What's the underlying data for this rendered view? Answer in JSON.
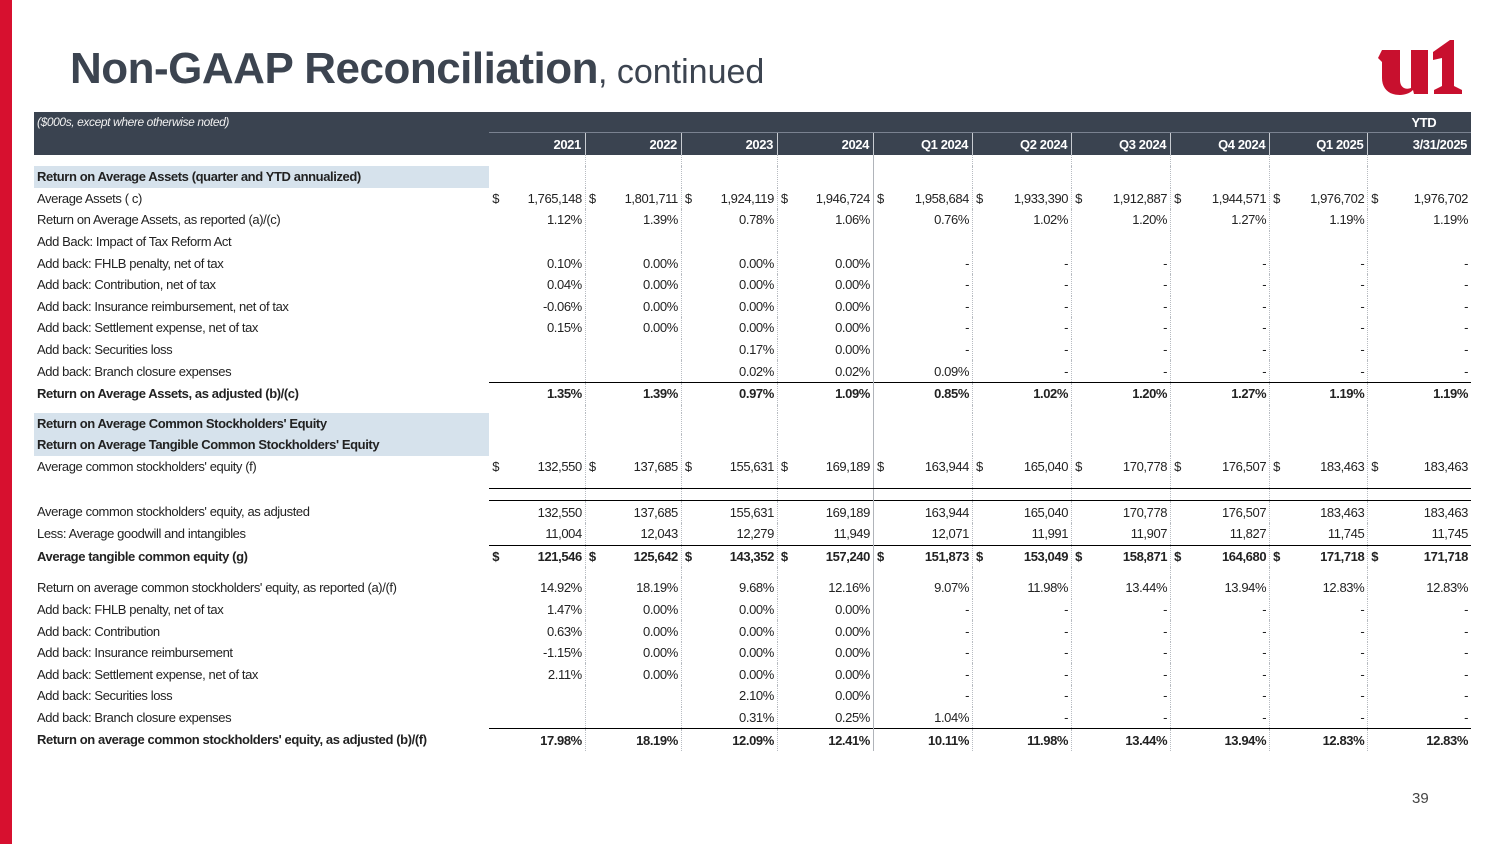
{
  "header": {
    "title_bold": "Non-GAAP Reconciliation",
    "title_rest": ", continued",
    "logo_text": "u1",
    "page_number": "39"
  },
  "table": {
    "note": "($000s, except where otherwise noted)",
    "ytd_label": "YTD",
    "columns": [
      "2021",
      "2022",
      "2023",
      "2024",
      "Q1 2024",
      "Q2 2024",
      "Q3 2024",
      "Q4 2024",
      "Q1 2025",
      "3/31/2025"
    ],
    "section1": {
      "heading": "Return on Average Assets (quarter and YTD annualized)",
      "rows": [
        {
          "label": "Average Assets ( c)",
          "cur": true,
          "values": [
            "1,765,148",
            "1,801,711",
            "1,924,119",
            "1,946,724",
            "1,958,684",
            "1,933,390",
            "1,912,887",
            "1,944,571",
            "1,976,702",
            "1,976,702"
          ]
        },
        {
          "label": "Return on Average Assets, as reported (a)/(c)",
          "values": [
            "1.12%",
            "1.39%",
            "0.78%",
            "1.06%",
            "0.76%",
            "1.02%",
            "1.20%",
            "1.27%",
            "1.19%",
            "1.19%"
          ]
        },
        {
          "label": "Add Back: Impact of Tax Reform Act",
          "values": [
            "",
            "",
            "",
            "",
            "",
            "",
            "",
            "",
            "",
            ""
          ]
        },
        {
          "label": "Add back: FHLB penalty, net of tax",
          "values": [
            "0.10%",
            "0.00%",
            "0.00%",
            "0.00%",
            "-",
            "-",
            "-",
            "-",
            "-",
            "-"
          ]
        },
        {
          "label": "Add back: Contribution, net of tax",
          "values": [
            "0.04%",
            "0.00%",
            "0.00%",
            "0.00%",
            "-",
            "-",
            "-",
            "-",
            "-",
            "-"
          ]
        },
        {
          "label": "Add back: Insurance reimbursement, net of tax",
          "values": [
            "-0.06%",
            "0.00%",
            "0.00%",
            "0.00%",
            "-",
            "-",
            "-",
            "-",
            "-",
            "-"
          ]
        },
        {
          "label": "Add back: Settlement expense, net of tax",
          "values": [
            "0.15%",
            "0.00%",
            "0.00%",
            "0.00%",
            "-",
            "-",
            "-",
            "-",
            "-",
            "-"
          ]
        },
        {
          "label": "Add back: Securities loss",
          "values": [
            "",
            "",
            "0.17%",
            "0.00%",
            "-",
            "-",
            "-",
            "-",
            "-",
            "-"
          ]
        },
        {
          "label": "Add back: Branch closure expenses",
          "values": [
            "",
            "",
            "0.02%",
            "0.02%",
            "0.09%",
            "-",
            "-",
            "-",
            "-",
            "-"
          ]
        }
      ],
      "total": {
        "label": "Return on Average Assets, as adjusted (b)/(c)",
        "values": [
          "1.35%",
          "1.39%",
          "0.97%",
          "1.09%",
          "0.85%",
          "1.02%",
          "1.20%",
          "1.27%",
          "1.19%",
          "1.19%"
        ]
      }
    },
    "section2": {
      "heading1": "Return on Average Common Stockholders' Equity",
      "heading2": "Return on Average Tangible Common Stockholders' Equity",
      "equity": {
        "label": "Average common stockholders' equity (f)",
        "values": [
          "132,550",
          "137,685",
          "155,631",
          "169,189",
          "163,944",
          "165,040",
          "170,778",
          "176,507",
          "183,463",
          "183,463"
        ]
      },
      "adjusted": {
        "label": "Average common stockholders' equity, as adjusted",
        "values": [
          "132,550",
          "137,685",
          "155,631",
          "169,189",
          "163,944",
          "165,040",
          "170,778",
          "176,507",
          "183,463",
          "183,463"
        ]
      },
      "goodwill": {
        "label": "Less: Average goodwill and intangibles",
        "values": [
          "11,004",
          "12,043",
          "12,279",
          "11,949",
          "12,071",
          "11,991",
          "11,907",
          "11,827",
          "11,745",
          "11,745"
        ]
      },
      "tangible": {
        "label": "Average tangible common equity (g)",
        "values": [
          "121,546",
          "125,642",
          "143,352",
          "157,240",
          "151,873",
          "153,049",
          "158,871",
          "164,680",
          "171,718",
          "171,718"
        ]
      },
      "rows": [
        {
          "label": "Return on average common stockholders' equity, as reported (a)/(f)",
          "values": [
            "14.92%",
            "18.19%",
            "9.68%",
            "12.16%",
            "9.07%",
            "11.98%",
            "13.44%",
            "13.94%",
            "12.83%",
            "12.83%"
          ]
        },
        {
          "label": "Add back: FHLB penalty, net of tax",
          "values": [
            "1.47%",
            "0.00%",
            "0.00%",
            "0.00%",
            "-",
            "-",
            "-",
            "-",
            "-",
            "-"
          ]
        },
        {
          "label": "Add back: Contribution",
          "values": [
            "0.63%",
            "0.00%",
            "0.00%",
            "0.00%",
            "-",
            "-",
            "-",
            "-",
            "-",
            "-"
          ]
        },
        {
          "label": "Add back: Insurance reimbursement",
          "values": [
            "-1.15%",
            "0.00%",
            "0.00%",
            "0.00%",
            "-",
            "-",
            "-",
            "-",
            "-",
            "-"
          ]
        },
        {
          "label": "Add back: Settlement expense, net of tax",
          "values": [
            "2.11%",
            "0.00%",
            "0.00%",
            "0.00%",
            "-",
            "-",
            "-",
            "-",
            "-",
            "-"
          ]
        },
        {
          "label": "Add back: Securities loss",
          "values": [
            "",
            "",
            "2.10%",
            "0.00%",
            "-",
            "-",
            "-",
            "-",
            "-",
            "-"
          ]
        },
        {
          "label": "Add back: Branch closure expenses",
          "values": [
            "",
            "",
            "0.31%",
            "0.25%",
            "1.04%",
            "-",
            "-",
            "-",
            "-",
            "-"
          ]
        }
      ],
      "total": {
        "label": "Return on average common stockholders' equity, as adjusted (b)/(f)",
        "values": [
          "17.98%",
          "18.19%",
          "12.09%",
          "12.41%",
          "10.11%",
          "11.98%",
          "13.44%",
          "13.94%",
          "12.83%",
          "12.83%"
        ]
      }
    },
    "currency_symbol": "$"
  },
  "colors": {
    "accent_red": "#d7102f",
    "header_bg": "#3a4350",
    "section_bg": "#d6e2ec",
    "logo_red": "#c8102e"
  }
}
